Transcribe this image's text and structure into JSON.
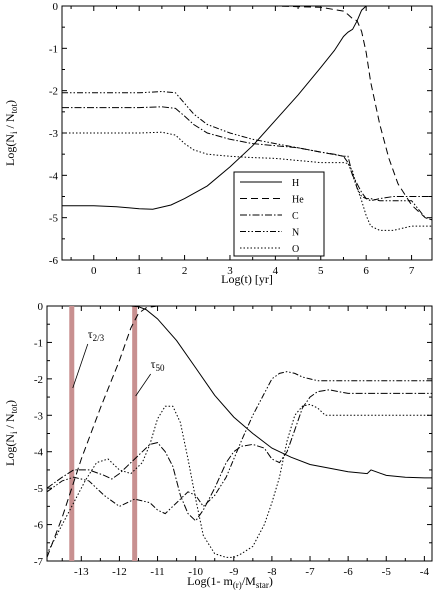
{
  "chart_data": [
    {
      "type": "line",
      "title": "",
      "xlabel": "Log(t)  [yr]",
      "ylabel_main": "Log(N",
      "ylabel_sub1": "i",
      "ylabel_mid": " / N",
      "ylabel_sub2": "tot",
      "ylabel_end": ")",
      "xlim": [
        -0.7,
        7.45
      ],
      "ylim": [
        -6,
        0
      ],
      "xticks": [
        0,
        1,
        2,
        3,
        4,
        5,
        6,
        7
      ],
      "xtick_labels": [
        "0",
        "1",
        "2",
        "3",
        "4",
        "5",
        "6",
        "7"
      ],
      "yticks": [
        0,
        -1,
        -2,
        -3,
        -4,
        -5,
        -6
      ],
      "ytick_labels": [
        "0",
        "-1",
        "-2",
        "-3",
        "-4",
        "-5",
        "-6"
      ],
      "legend_position": "bottom-right",
      "series": [
        {
          "name": "H",
          "dash": "",
          "x": [
            -0.7,
            0,
            0.5,
            1,
            1.3,
            1.7,
            2,
            2.5,
            3,
            3.5,
            4,
            4.5,
            5,
            5.3,
            5.5,
            5.6,
            5.7,
            5.8,
            5.9,
            6,
            6.2,
            7.45
          ],
          "y": [
            -4.72,
            -4.72,
            -4.74,
            -4.79,
            -4.8,
            -4.7,
            -4.55,
            -4.25,
            -3.8,
            -3.3,
            -2.7,
            -2.1,
            -1.45,
            -1.05,
            -0.72,
            -0.62,
            -0.55,
            -0.35,
            -0.1,
            0,
            0,
            0
          ]
        },
        {
          "name": "He",
          "dash": "7,4",
          "x": [
            -0.7,
            1,
            2,
            3,
            4,
            5,
            5.5,
            5.6,
            5.7,
            5.8,
            5.9,
            6.0,
            6.1,
            6.3,
            6.5,
            6.7,
            7.0,
            7.3,
            7.45
          ],
          "y": [
            0,
            0,
            0,
            0,
            0,
            -0.03,
            -0.12,
            -0.2,
            -0.3,
            -0.35,
            -0.6,
            -1.1,
            -1.8,
            -2.8,
            -3.6,
            -4.2,
            -4.7,
            -5.0,
            -5.05
          ]
        },
        {
          "name": "C",
          "dash": "7,2,1.5,2",
          "x": [
            -0.7,
            0.5,
            1,
            1.5,
            1.8,
            2,
            2.2,
            2.5,
            3,
            3.5,
            4,
            4.5,
            5,
            5.5,
            5.6,
            5.7,
            5.8,
            5.9,
            6,
            6.1,
            6.3,
            6.6,
            7,
            7.45
          ],
          "y": [
            -2.4,
            -2.4,
            -2.4,
            -2.38,
            -2.42,
            -2.6,
            -2.8,
            -3.0,
            -3.15,
            -3.25,
            -3.3,
            -3.35,
            -3.45,
            -3.55,
            -3.55,
            -4.0,
            -4.2,
            -4.4,
            -4.55,
            -4.6,
            -4.55,
            -4.5,
            -4.5,
            -4.5
          ]
        },
        {
          "name": "N",
          "dash": "6,2,1.5,2,1.5,2",
          "x": [
            -0.7,
            0.5,
            1,
            1.5,
            1.8,
            2,
            2.2,
            2.5,
            3,
            3.5,
            4,
            4.5,
            5,
            5.3,
            5.5,
            5.6,
            5.7,
            5.8,
            5.9,
            6,
            6.1,
            6.3,
            6.6,
            7,
            7.3,
            7.45
          ],
          "y": [
            -2.05,
            -2.05,
            -2.05,
            -2.02,
            -2.05,
            -2.3,
            -2.55,
            -2.8,
            -3.0,
            -3.15,
            -3.25,
            -3.35,
            -3.45,
            -3.5,
            -3.55,
            -3.7,
            -4.0,
            -4.3,
            -4.5,
            -4.55,
            -4.55,
            -4.6,
            -4.6,
            -4.6,
            -5.0,
            -5.05
          ]
        },
        {
          "name": "O",
          "dash": "1.5,2",
          "x": [
            -0.7,
            0.5,
            1,
            1.5,
            1.8,
            2,
            2.2,
            2.5,
            3,
            3.5,
            4,
            4.5,
            5,
            5.5,
            5.6,
            5.7,
            5.8,
            5.9,
            6,
            6.1,
            6.3,
            6.6,
            7,
            7.45
          ],
          "y": [
            -3.0,
            -3.0,
            -3.0,
            -2.98,
            -3.05,
            -3.25,
            -3.4,
            -3.5,
            -3.55,
            -3.58,
            -3.6,
            -3.65,
            -3.7,
            -3.7,
            -3.72,
            -3.9,
            -4.3,
            -4.6,
            -4.95,
            -5.2,
            -5.3,
            -5.3,
            -5.2,
            -5.2
          ]
        }
      ]
    },
    {
      "type": "line",
      "title": "",
      "xlabel_main": "Log(1- m",
      "xlabel_sub1": "(r)",
      "xlabel_mid": "/M",
      "xlabel_sub2": "star",
      "xlabel_end": ")",
      "ylabel_main": "Log(N",
      "ylabel_sub1": "i",
      "ylabel_mid": " / N",
      "ylabel_sub2": "tot",
      "ylabel_end": ")",
      "xlim": [
        -13.9,
        -3.8
      ],
      "ylim": [
        -7,
        0
      ],
      "xticks": [
        -13,
        -12,
        -11,
        -10,
        -9,
        -8,
        -7,
        -6,
        -5,
        -4
      ],
      "xtick_labels": [
        "-13",
        "-12",
        "-11",
        "-10",
        "-9",
        "-8",
        "-7",
        "-6",
        "-5",
        "-4"
      ],
      "yticks": [
        0,
        -1,
        -2,
        -3,
        -4,
        -5,
        -6,
        -7
      ],
      "ytick_labels": [
        "0",
        "-1",
        "-2",
        "-3",
        "-4",
        "-5",
        "-6",
        "-7"
      ],
      "markers": [
        {
          "x": -13.25,
          "label": "τ",
          "sub": "2/3",
          "color": "#c89090"
        },
        {
          "x": -11.6,
          "label": "τ",
          "sub": "50",
          "color": "#c89090"
        }
      ],
      "series": [
        {
          "name": "H",
          "dash": "",
          "x": [
            -11.7,
            -11.5,
            -11.3,
            -11,
            -10.5,
            -10,
            -9.5,
            -9,
            -8.5,
            -8,
            -7.5,
            -7,
            -6.5,
            -6,
            -5.5,
            -5.4,
            -5,
            -4.5,
            -4,
            -3.8
          ],
          "y": [
            0,
            -0.02,
            -0.1,
            -0.35,
            -0.95,
            -1.7,
            -2.45,
            -3.05,
            -3.5,
            -3.9,
            -4.15,
            -4.35,
            -4.45,
            -4.55,
            -4.6,
            -4.5,
            -4.65,
            -4.7,
            -4.72,
            -4.72
          ]
        },
        {
          "name": "He",
          "dash": "7,4",
          "x": [
            -13.9,
            -13.5,
            -13,
            -12.5,
            -12,
            -11.7,
            -11.5,
            -11.3,
            -11,
            -10.5,
            -10,
            -9,
            -8,
            -7,
            -6,
            -5,
            -4,
            -3.8
          ],
          "y": [
            -6.9,
            -5.8,
            -4.2,
            -2.8,
            -1.5,
            -0.6,
            -0.2,
            -0.05,
            0,
            0,
            0,
            0,
            0,
            0,
            0,
            0,
            0,
            0
          ]
        },
        {
          "name": "C",
          "dash": "7,2,1.5,2",
          "x": [
            -13.9,
            -13.5,
            -13.2,
            -12.8,
            -12.4,
            -12.2,
            -12,
            -11.6,
            -11.2,
            -11,
            -10.8,
            -10.6,
            -10.4,
            -10.2,
            -10,
            -9.8,
            -9.5,
            -9.2,
            -9,
            -8.8,
            -8.5,
            -8.2,
            -8,
            -7.8,
            -7.6,
            -7.4,
            -7.2,
            -7,
            -6.8,
            -6.5,
            -6,
            -5,
            -4,
            -3.8
          ],
          "y": [
            -5.0,
            -4.7,
            -4.5,
            -4.5,
            -4.65,
            -4.75,
            -4.6,
            -4.2,
            -3.8,
            -3.75,
            -4.0,
            -4.4,
            -5.2,
            -5.7,
            -5.9,
            -5.6,
            -5.0,
            -4.3,
            -4.0,
            -3.85,
            -3.8,
            -3.9,
            -4.2,
            -4.3,
            -4.0,
            -3.4,
            -2.8,
            -2.5,
            -2.35,
            -2.3,
            -2.4,
            -2.4,
            -2.4,
            -2.4
          ]
        },
        {
          "name": "N",
          "dash": "6,2,1.5,2,1.5,2",
          "x": [
            -13.9,
            -13.5,
            -13.2,
            -12.8,
            -12.4,
            -12,
            -11.6,
            -11.2,
            -11,
            -10.8,
            -10.6,
            -10.4,
            -10.2,
            -10,
            -9.8,
            -9.5,
            -9.2,
            -9,
            -8.8,
            -8.5,
            -8.2,
            -8,
            -7.8,
            -7.6,
            -7.4,
            -7.2,
            -7,
            -6.8,
            -6.5,
            -6,
            -5,
            -4,
            -3.8
          ],
          "y": [
            -5.1,
            -4.8,
            -4.7,
            -4.8,
            -5.2,
            -5.5,
            -5.3,
            -5.4,
            -5.6,
            -5.7,
            -5.5,
            -5.3,
            -5.1,
            -5.2,
            -5.5,
            -5.2,
            -4.7,
            -4.2,
            -3.7,
            -3.0,
            -2.4,
            -2.0,
            -1.85,
            -1.8,
            -1.85,
            -1.95,
            -2.0,
            -2.05,
            -2.05,
            -2.05,
            -2.05,
            -2.05,
            -2.05
          ]
        },
        {
          "name": "O",
          "dash": "1.5,2",
          "x": [
            -13.9,
            -13.5,
            -13.2,
            -12.9,
            -12.6,
            -12.3,
            -12,
            -11.7,
            -11.4,
            -11.2,
            -11,
            -10.8,
            -10.6,
            -10.4,
            -10.2,
            -10,
            -9.8,
            -9.5,
            -9.2,
            -9,
            -8.8,
            -8.5,
            -8.2,
            -8,
            -7.8,
            -7.6,
            -7.4,
            -7.2,
            -7,
            -6.8,
            -6.6,
            -6.5,
            -6,
            -5,
            -4,
            -3.8
          ],
          "y": [
            -6.8,
            -6.0,
            -5.4,
            -4.8,
            -4.3,
            -4.2,
            -4.5,
            -4.6,
            -4.3,
            -3.8,
            -3.1,
            -2.75,
            -2.75,
            -3.2,
            -4.2,
            -5.3,
            -6.3,
            -6.8,
            -6.9,
            -6.9,
            -6.8,
            -6.6,
            -6.0,
            -5.4,
            -4.7,
            -3.7,
            -3.0,
            -2.75,
            -2.7,
            -2.8,
            -3.0,
            -3.0,
            -3.0,
            -3.0,
            -3.0,
            -3.0
          ]
        }
      ]
    }
  ]
}
